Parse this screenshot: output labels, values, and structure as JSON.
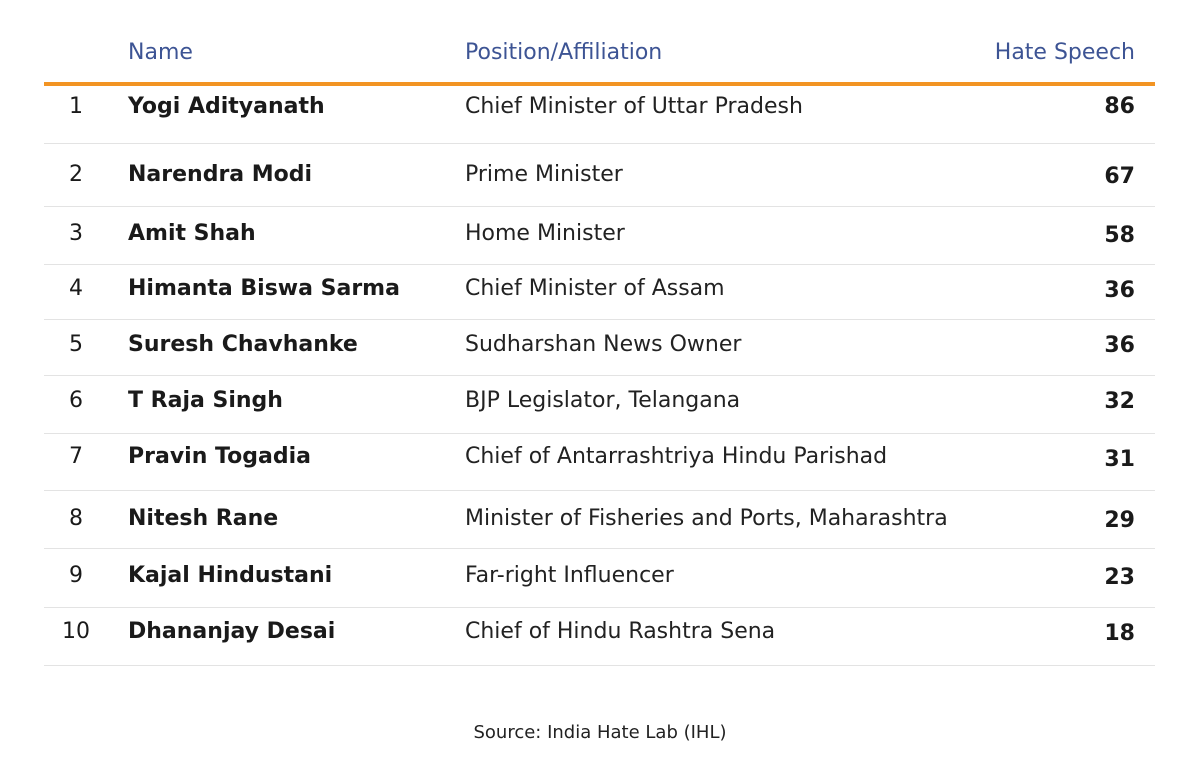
{
  "table": {
    "headers": {
      "rank": "",
      "name": "Name",
      "position": "Position/Affiliation",
      "count": "Hate Speech"
    },
    "rows": [
      {
        "rank": "1",
        "name": "Yogi Adityanath",
        "position": "Chief Minister of Uttar Pradesh",
        "count": "86"
      },
      {
        "rank": "2",
        "name": "Narendra Modi",
        "position": "Prime Minister",
        "count": "67"
      },
      {
        "rank": "3",
        "name": "Amit Shah",
        "position": "Home Minister",
        "count": "58"
      },
      {
        "rank": "4",
        "name": "Himanta Biswa Sarma",
        "position": "Chief Minister of Assam",
        "count": "36"
      },
      {
        "rank": "5",
        "name": "Suresh Chavhanke",
        "position": "Sudharshan News Owner",
        "count": "36"
      },
      {
        "rank": "6",
        "name": "T Raja Singh",
        "position": "BJP Legislator, Telangana",
        "count": "32"
      },
      {
        "rank": "7",
        "name": "Pravin Togadia",
        "position": "Chief of Antarrashtriya Hindu Parishad",
        "count": "31"
      },
      {
        "rank": "8",
        "name": "Nitesh Rane",
        "position": "Minister of Fisheries and Ports, Maharashtra",
        "count": "29"
      },
      {
        "rank": "9",
        "name": "Kajal Hindustani",
        "position": "Far-right Influencer",
        "count": "23"
      },
      {
        "rank": "10",
        "name": "Dhananjay Desai",
        "position": "Chief of Hindu Rashtra Sena",
        "count": "18"
      }
    ]
  },
  "source": "Source: India Hate Lab (IHL)",
  "colors": {
    "header_text": "#3d5494",
    "header_rule": "#f29423",
    "row_divider": "#e3e3e3"
  },
  "chart_data": {
    "type": "table",
    "columns": [
      "",
      "Name",
      "Position/Affiliation",
      "Hate Speech"
    ],
    "rows": [
      [
        "1",
        "Yogi Adityanath",
        "Chief Minister of Uttar Pradesh",
        86
      ],
      [
        "2",
        "Narendra Modi",
        "Prime Minister",
        67
      ],
      [
        "3",
        "Amit Shah",
        "Home Minister",
        58
      ],
      [
        "4",
        "Himanta Biswa Sarma",
        "Chief Minister of Assam",
        36
      ],
      [
        "5",
        "Suresh Chavhanke",
        "Sudharshan News Owner",
        36
      ],
      [
        "6",
        "T Raja Singh",
        "BJP Legislator, Telangana",
        32
      ],
      [
        "7",
        "Pravin Togadia",
        "Chief of Antarrashtriya Hindu Parishad",
        31
      ],
      [
        "8",
        "Nitesh Rane",
        "Minister of Fisheries and Ports, Maharashtra",
        29
      ],
      [
        "9",
        "Kajal Hindustani",
        "Far-right Influencer",
        23
      ],
      [
        "10",
        "Dhananjay Desai",
        "Chief of Hindu Rashtra Sena",
        18
      ]
    ]
  }
}
